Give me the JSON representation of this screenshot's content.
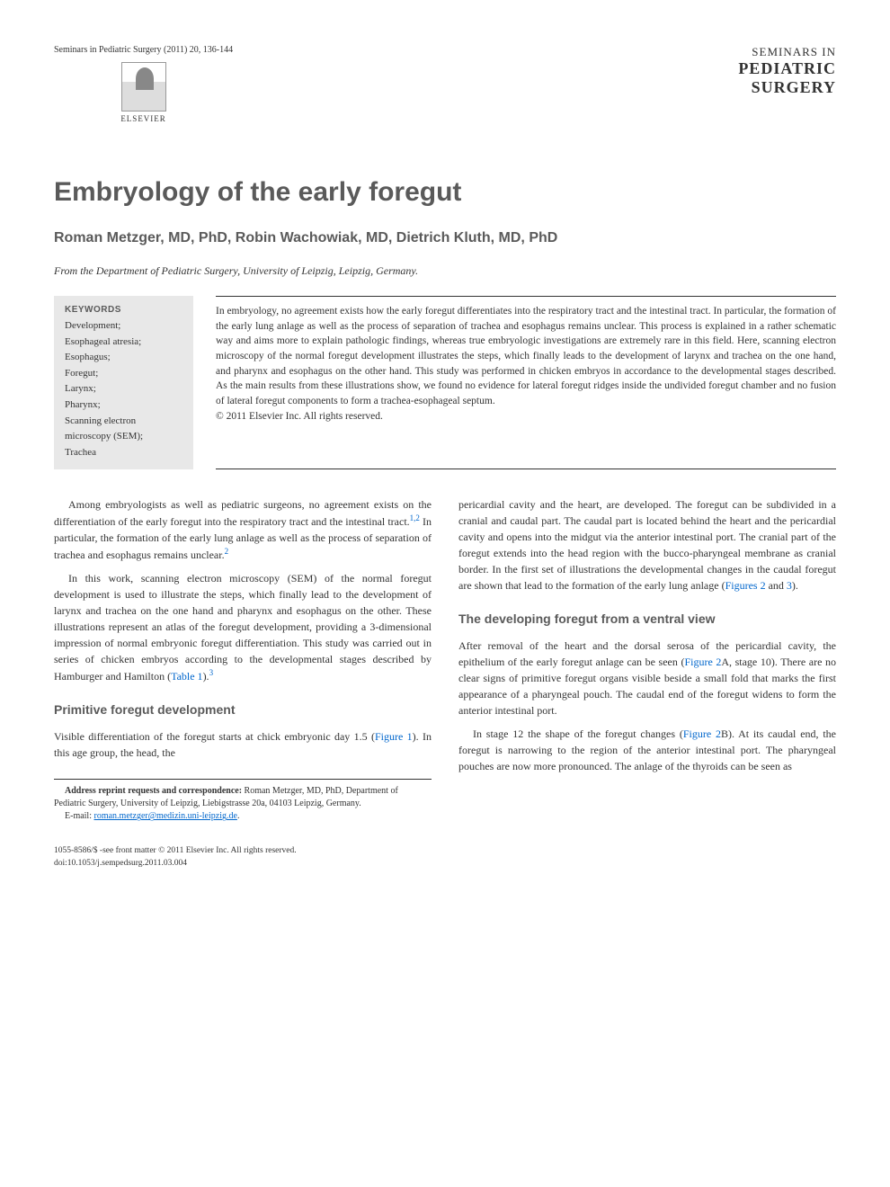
{
  "header": {
    "citation": "Seminars in Pediatric Surgery (2011) 20, 136-144",
    "publisher_name": "ELSEVIER",
    "journal_line1": "SEMINARS IN",
    "journal_line2": "PEDIATRIC",
    "journal_line3": "SURGERY"
  },
  "article": {
    "title": "Embryology of the early foregut",
    "authors": "Roman Metzger, MD, PhD, Robin Wachowiak, MD, Dietrich Kluth, MD, PhD",
    "affiliation": "From the Department of Pediatric Surgery, University of Leipzig, Leipzig, Germany."
  },
  "keywords": {
    "heading": "KEYWORDS",
    "list": "Development;\nEsophageal atresia;\nEsophagus;\nForegut;\nLarynx;\nPharynx;\nScanning electron microscopy (SEM);\nTrachea"
  },
  "abstract": {
    "text": "In embryology, no agreement exists how the early foregut differentiates into the respiratory tract and the intestinal tract. In particular, the formation of the early lung anlage as well as the process of separation of trachea and esophagus remains unclear. This process is explained in a rather schematic way and aims more to explain pathologic findings, whereas true embryologic investigations are extremely rare in this field. Here, scanning electron microscopy of the normal foregut development illustrates the steps, which finally leads to the development of larynx and trachea on the one hand, and pharynx and esophagus on the other hand. This study was performed in chicken embryos in accordance to the developmental stages described. As the main results from these illustrations show, we found no evidence for lateral foregut ridges inside the undivided foregut chamber and no fusion of lateral foregut components to form a trachea-esophageal septum.",
    "copyright": "© 2011 Elsevier Inc. All rights reserved."
  },
  "body": {
    "left": {
      "p1": "Among embryologists as well as pediatric surgeons, no agreement exists on the differentiation of the early foregut into the respiratory tract and the intestinal tract.",
      "p1_sup": "1,2",
      "p1_cont": " In particular, the formation of the early lung anlage as well as the process of separation of trachea and esophagus remains unclear.",
      "p1_sup2": "2",
      "p2": "In this work, scanning electron microscopy (SEM) of the normal foregut development is used to illustrate the steps, which finally lead to the development of larynx and trachea on the one hand and pharynx and esophagus on the other. These illustrations represent an atlas of the foregut development, providing a 3-dimensional impression of normal embryonic foregut differentiation. This study was carried out in series of chicken embryos according to the developmental stages described by Hamburger and Hamilton (",
      "p2_link": "Table 1",
      "p2_end": ").",
      "p2_sup": "3",
      "h1": "Primitive foregut development",
      "p3a": "Visible differentiation of the foregut starts at chick embryonic day 1.5 (",
      "p3_link": "Figure 1",
      "p3b": "). In this age group, the head, the"
    },
    "right": {
      "p1": "pericardial cavity and the heart, are developed. The foregut can be subdivided in a cranial and caudal part. The caudal part is located behind the heart and the pericardial cavity and opens into the midgut via the anterior intestinal port. The cranial part of the foregut extends into the head region with the bucco-pharyngeal membrane as cranial border. In the first set of illustrations the developmental changes in the caudal foregut are shown that lead to the formation of the early lung anlage (",
      "p1_link1": "Figures 2",
      "p1_mid": " and ",
      "p1_link2": "3",
      "p1_end": ").",
      "h1": "The developing foregut from a ventral view",
      "p2a": "After removal of the heart and the dorsal serosa of the pericardial cavity, the epithelium of the early foregut anlage can be seen (",
      "p2_link": "Figure 2",
      "p2b": "A, stage 10). There are no clear signs of primitive foregut organs visible beside a small fold that marks the first appearance of a pharyngeal pouch. The caudal end of the foregut widens to form the anterior intestinal port.",
      "p3a": "In stage 12 the shape of the foregut changes (",
      "p3_link": "Figure 2",
      "p3b": "B). At its caudal end, the foregut is narrowing to the region of the anterior intestinal port. The pharyngeal pouches are now more pronounced. The anlage of the thyroids can be seen as"
    }
  },
  "footnotes": {
    "address_label": "Address reprint requests and correspondence:",
    "address_text": " Roman Metzger, MD, PhD, Department of Pediatric Surgery, University of Leipzig, Liebigstrasse 20a, 04103 Leipzig, Germany.",
    "email_label": "E-mail: ",
    "email": "roman.metzger@medizin.uni-leipzig.de",
    "email_end": "."
  },
  "footer": {
    "line1": "1055-8586/$ -see front matter © 2011 Elsevier Inc. All rights reserved.",
    "line2": "doi:10.1053/j.sempedsurg.2011.03.004"
  },
  "style": {
    "background_color": "#ffffff",
    "text_color": "#333333",
    "heading_color": "#5a5a5a",
    "keywords_bg": "#e8e8e8",
    "link_color": "#0066cc",
    "body_fontsize": 12,
    "title_fontsize": 30,
    "authors_fontsize": 16
  }
}
